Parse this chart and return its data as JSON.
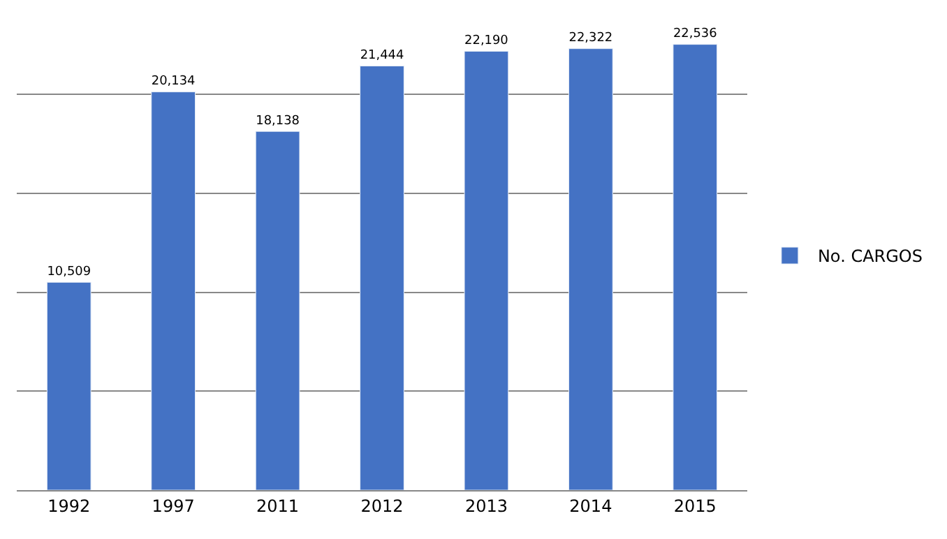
{
  "chart_data": {
    "type": "bar",
    "categories": [
      "1992",
      "1997",
      "2011",
      "2012",
      "2013",
      "2014",
      "2015"
    ],
    "series": [
      {
        "name": "No. CARGOS",
        "color": "#4472c4",
        "values": [
          10509,
          20134,
          18138,
          21444,
          22190,
          22322,
          22536
        ],
        "value_labels": [
          "10,509",
          "20,134",
          "18,138",
          "21,444",
          "22,190",
          "22,322",
          "22,536"
        ]
      }
    ],
    "tick_labels": "x",
    "grid": "y",
    "legend": "right"
  }
}
